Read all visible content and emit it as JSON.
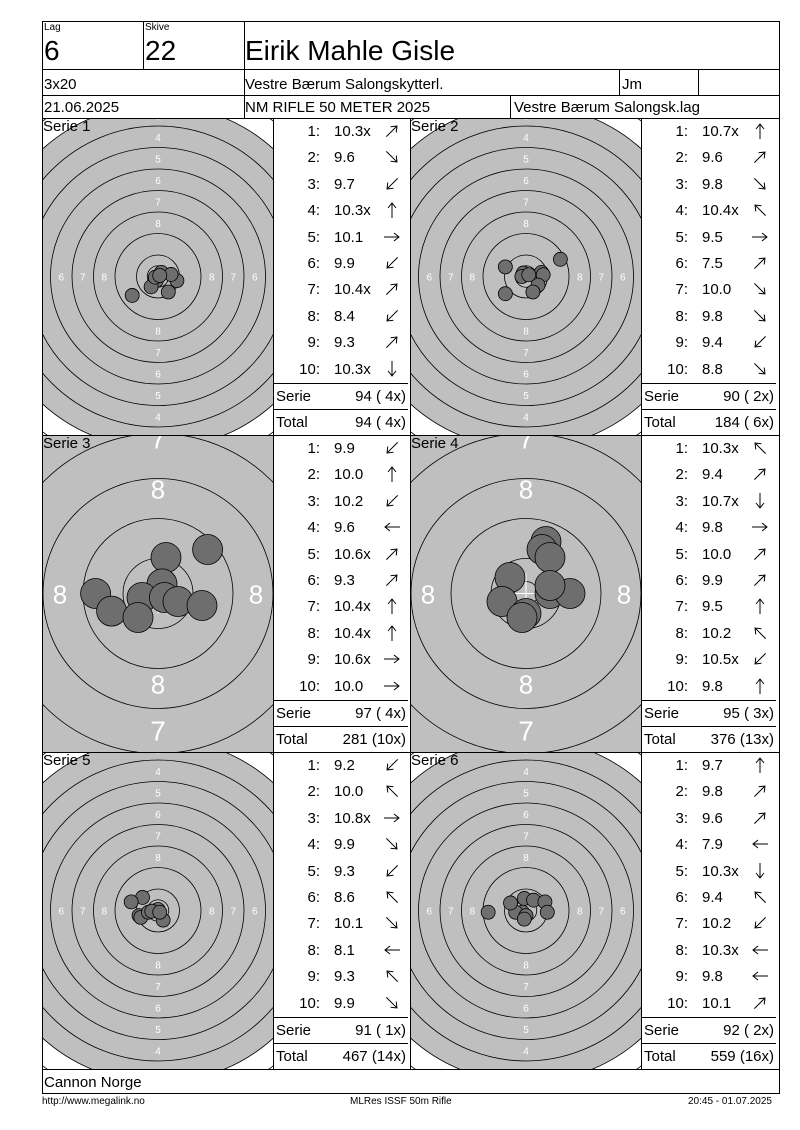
{
  "header": {
    "lag_label": "Lag",
    "lag_value": "6",
    "skive_label": "Skive",
    "skive_value": "22",
    "shooter_name": "Eirik Mahle Gisle",
    "program": "3x20",
    "club": "Vestre Bærum Salongskytterl.",
    "class": "Jm",
    "date": "21.06.2025",
    "event": "NM RIFLE 50 METER 2025",
    "team": "Vestre Bærum Salongsk.lag"
  },
  "sum_labels": {
    "serie": "Serie",
    "total": "Total"
  },
  "series": [
    {
      "title": "Serie 1",
      "zoom": "normal",
      "shots": [
        {
          "n": "1:",
          "v": "10.3x",
          "dir": "right-up"
        },
        {
          "n": "2:",
          "v": "9.6",
          "dir": "right-down"
        },
        {
          "n": "3:",
          "v": "9.7",
          "dir": "left-down"
        },
        {
          "n": "4:",
          "v": "10.3x",
          "dir": "up"
        },
        {
          "n": "5:",
          "v": "10.1",
          "dir": "right"
        },
        {
          "n": "6:",
          "v": "9.9",
          "dir": "left-down"
        },
        {
          "n": "7:",
          "v": "10.4x",
          "dir": "right-up"
        },
        {
          "n": "8:",
          "v": "8.4",
          "dir": "left-down"
        },
        {
          "n": "9:",
          "v": "9.3",
          "dir": "right-up"
        },
        {
          "n": "10:",
          "v": "10.3x",
          "dir": "down"
        }
      ],
      "serie_sum": "94 ( 4x)",
      "total_sum": "94 ( 4x)",
      "holes": [
        [
          0.0,
          0.0
        ],
        [
          0.1,
          -0.12
        ],
        [
          -0.05,
          0.12
        ],
        [
          0.55,
          0.12
        ],
        [
          -0.2,
          0.3
        ],
        [
          -0.08,
          0.02
        ],
        [
          0.38,
          -0.06
        ],
        [
          0.3,
          0.45
        ],
        [
          -0.75,
          0.55
        ],
        [
          0.05,
          -0.03
        ]
      ]
    },
    {
      "title": "Serie 2",
      "zoom": "normal",
      "shots": [
        {
          "n": "1:",
          "v": "10.7x",
          "dir": "up"
        },
        {
          "n": "2:",
          "v": "9.6",
          "dir": "right-up"
        },
        {
          "n": "3:",
          "v": "9.8",
          "dir": "right-down"
        },
        {
          "n": "4:",
          "v": "10.4x",
          "dir": "left-up"
        },
        {
          "n": "5:",
          "v": "9.5",
          "dir": "right"
        },
        {
          "n": "6:",
          "v": "7.5",
          "dir": "right-up"
        },
        {
          "n": "7:",
          "v": "10.0",
          "dir": "right-down"
        },
        {
          "n": "8:",
          "v": "9.8",
          "dir": "right-down"
        },
        {
          "n": "9:",
          "v": "9.4",
          "dir": "left-down"
        },
        {
          "n": "10:",
          "v": "8.8",
          "dir": "right-down"
        }
      ],
      "serie_sum": "90 ( 2x)",
      "total_sum": "184 ( 6x)",
      "holes": [
        [
          -0.08,
          -0.1
        ],
        [
          0.45,
          -0.12
        ],
        [
          0.5,
          -0.05
        ],
        [
          -0.6,
          0.5
        ],
        [
          0.35,
          0.25
        ],
        [
          1.0,
          -0.5
        ],
        [
          0.2,
          0.45
        ],
        [
          -0.12,
          0.0
        ],
        [
          -0.6,
          -0.28
        ],
        [
          0.08,
          -0.05
        ]
      ]
    },
    {
      "title": "Serie 3",
      "zoom": "large",
      "shots": [
        {
          "n": "1:",
          "v": "9.9",
          "dir": "left-down"
        },
        {
          "n": "2:",
          "v": "10.0",
          "dir": "up"
        },
        {
          "n": "3:",
          "v": "10.2",
          "dir": "left-down"
        },
        {
          "n": "4:",
          "v": "9.6",
          "dir": "left"
        },
        {
          "n": "5:",
          "v": "10.6x",
          "dir": "right-up"
        },
        {
          "n": "6:",
          "v": "9.3",
          "dir": "right-up"
        },
        {
          "n": "7:",
          "v": "10.4x",
          "dir": "up"
        },
        {
          "n": "8:",
          "v": "10.4x",
          "dir": "up"
        },
        {
          "n": "9:",
          "v": "10.6x",
          "dir": "right"
        },
        {
          "n": "10:",
          "v": "10.0",
          "dir": "right"
        }
      ],
      "serie_sum": "97 ( 4x)",
      "total_sum": "281 (10x)",
      "holes": [
        [
          0.1,
          -0.45
        ],
        [
          0.05,
          -0.12
        ],
        [
          -0.2,
          0.05
        ],
        [
          0.08,
          0.05
        ],
        [
          0.25,
          0.1
        ],
        [
          0.62,
          -0.55
        ],
        [
          -0.78,
          0.0
        ],
        [
          -0.58,
          0.22
        ],
        [
          -0.25,
          0.3
        ],
        [
          0.55,
          0.15
        ]
      ]
    },
    {
      "title": "Serie 4",
      "zoom": "large",
      "shots": [
        {
          "n": "1:",
          "v": "10.3x",
          "dir": "left-up"
        },
        {
          "n": "2:",
          "v": "9.4",
          "dir": "right-up"
        },
        {
          "n": "3:",
          "v": "10.7x",
          "dir": "down"
        },
        {
          "n": "4:",
          "v": "9.8",
          "dir": "right"
        },
        {
          "n": "5:",
          "v": "10.0",
          "dir": "right-up"
        },
        {
          "n": "6:",
          "v": "9.9",
          "dir": "right-up"
        },
        {
          "n": "7:",
          "v": "9.5",
          "dir": "up"
        },
        {
          "n": "8:",
          "v": "10.2",
          "dir": "left-up"
        },
        {
          "n": "9:",
          "v": "10.5x",
          "dir": "left-down"
        },
        {
          "n": "10:",
          "v": "9.8",
          "dir": "up"
        }
      ],
      "serie_sum": "95 ( 3x)",
      "total_sum": "376 (13x)",
      "holes": [
        [
          0.25,
          -0.65
        ],
        [
          0.2,
          -0.55
        ],
        [
          0.3,
          -0.45
        ],
        [
          -0.2,
          -0.2
        ],
        [
          -0.3,
          0.1
        ],
        [
          0.3,
          0.0
        ],
        [
          0.55,
          0.0
        ],
        [
          0.0,
          0.25
        ],
        [
          -0.05,
          0.3
        ],
        [
          0.3,
          -0.1
        ]
      ]
    },
    {
      "title": "Serie 5",
      "zoom": "normal",
      "shots": [
        {
          "n": "1:",
          "v": "9.2",
          "dir": "left-down"
        },
        {
          "n": "2:",
          "v": "10.0",
          "dir": "left-up"
        },
        {
          "n": "3:",
          "v": "10.8x",
          "dir": "right"
        },
        {
          "n": "4:",
          "v": "9.9",
          "dir": "right-down"
        },
        {
          "n": "5:",
          "v": "9.3",
          "dir": "left-down"
        },
        {
          "n": "6:",
          "v": "8.6",
          "dir": "left-up"
        },
        {
          "n": "7:",
          "v": "10.1",
          "dir": "right-down"
        },
        {
          "n": "8:",
          "v": "8.1",
          "dir": "left"
        },
        {
          "n": "9:",
          "v": "9.3",
          "dir": "left-up"
        },
        {
          "n": "10:",
          "v": "9.9",
          "dir": "right-down"
        }
      ],
      "serie_sum": "91 ( 1x)",
      "total_sum": "467 (14x)",
      "holes": [
        [
          -0.45,
          -0.38
        ],
        [
          -0.05,
          0.0
        ],
        [
          0.0,
          -0.03
        ],
        [
          -0.55,
          0.15
        ],
        [
          -0.5,
          0.2
        ],
        [
          -0.78,
          -0.25
        ],
        [
          0.15,
          0.28
        ],
        [
          -0.28,
          0.05
        ],
        [
          -0.18,
          0.02
        ],
        [
          0.05,
          0.05
        ]
      ]
    },
    {
      "title": "Serie 6",
      "zoom": "normal",
      "shots": [
        {
          "n": "1:",
          "v": "9.7",
          "dir": "up"
        },
        {
          "n": "2:",
          "v": "9.8",
          "dir": "right-up"
        },
        {
          "n": "3:",
          "v": "9.6",
          "dir": "right-up"
        },
        {
          "n": "4:",
          "v": "7.9",
          "dir": "left"
        },
        {
          "n": "5:",
          "v": "10.3x",
          "dir": "down"
        },
        {
          "n": "6:",
          "v": "9.4",
          "dir": "left-up"
        },
        {
          "n": "7:",
          "v": "10.2",
          "dir": "left-down"
        },
        {
          "n": "8:",
          "v": "10.3x",
          "dir": "left"
        },
        {
          "n": "9:",
          "v": "9.8",
          "dir": "left"
        },
        {
          "n": "10:",
          "v": "10.1",
          "dir": "right-up"
        }
      ],
      "serie_sum": "92 ( 2x)",
      "total_sum": "559 (16x)",
      "holes": [
        [
          -0.05,
          -0.35
        ],
        [
          0.22,
          -0.3
        ],
        [
          0.55,
          -0.25
        ],
        [
          -1.1,
          0.05
        ],
        [
          -0.1,
          0.05
        ],
        [
          0.62,
          0.05
        ],
        [
          -0.3,
          0.05
        ],
        [
          -0.45,
          -0.22
        ],
        [
          0.0,
          0.15
        ],
        [
          -0.05,
          0.25
        ]
      ]
    }
  ],
  "footer": {
    "sponsor": "Cannon Norge",
    "url": "http://www.megalink.no",
    "software": "MLRes ISSF 50m Rifle",
    "printed": "20:45 - 01.07.2025"
  },
  "colors": {
    "ring_fill": "#bfbfbf",
    "hole": "#6e6e6e",
    "line": "#000000"
  }
}
